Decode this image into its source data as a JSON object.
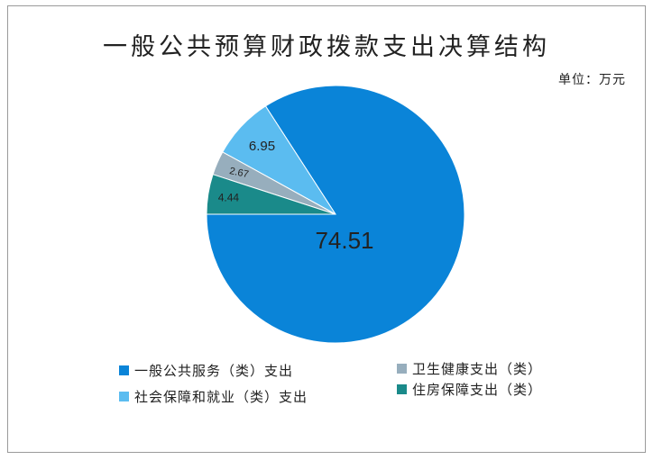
{
  "chart_data": {
    "type": "pie",
    "title": "一般公共预算财政拨款支出决算结构",
    "unit_label": "单位：万元",
    "slices": [
      {
        "name": "一般公共服务（类）支出",
        "value": 74.51,
        "label": "74.51",
        "color": "#0a84d8"
      },
      {
        "name": "社会保障和就业（类）支出",
        "value": 6.95,
        "label": "6.95",
        "color": "#5bbcf0"
      },
      {
        "name": "卫生健康支出（类）",
        "value": 2.67,
        "label": "2.67",
        "color": "#97aebd"
      },
      {
        "name": "住房保障支出（类）",
        "value": 4.44,
        "label": "4.44",
        "color": "#1a8a8a"
      }
    ],
    "legend": [
      {
        "name": "一般公共服务（类）支出",
        "color": "#0a84d8"
      },
      {
        "name": "卫生健康支出（类）",
        "color": "#97aebd"
      },
      {
        "name": "社会保障和就业（类）支出",
        "color": "#5bbcf0"
      },
      {
        "name": "住房保障支出（类）",
        "color": "#1a8a8a"
      }
    ],
    "legend_placement": "bottom"
  }
}
